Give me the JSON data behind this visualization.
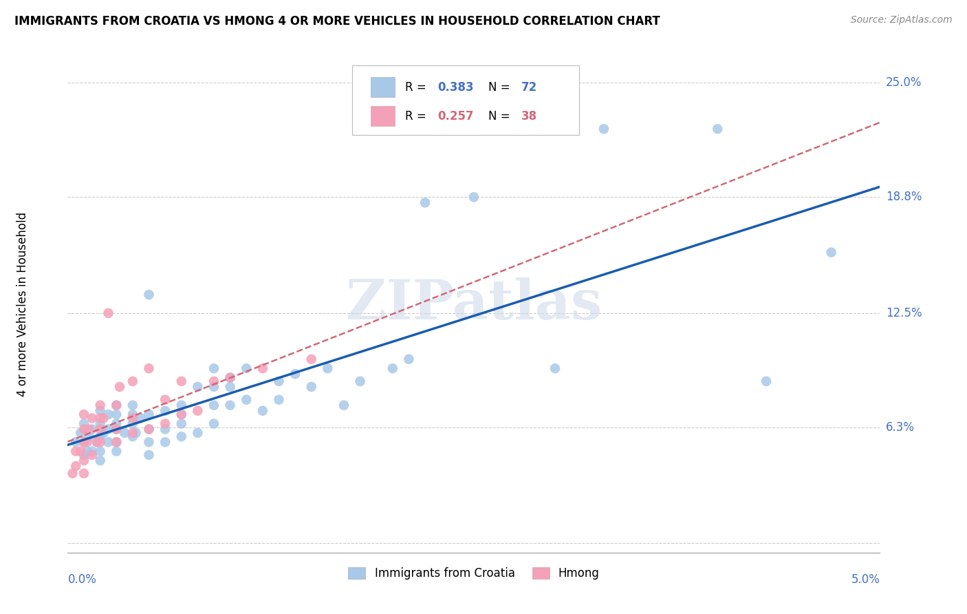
{
  "title": "IMMIGRANTS FROM CROATIA VS HMONG 4 OR MORE VEHICLES IN HOUSEHOLD CORRELATION CHART",
  "source": "Source: ZipAtlas.com",
  "ylabel": "4 or more Vehicles in Household",
  "yticks": [
    0.0,
    0.063,
    0.125,
    0.188,
    0.25
  ],
  "ytick_labels": [
    "",
    "6.3%",
    "12.5%",
    "18.8%",
    "25.0%"
  ],
  "xmin": 0.0,
  "xmax": 0.05,
  "ymin": -0.005,
  "ymax": 0.265,
  "croatia_color": "#a8c8e8",
  "hmong_color": "#f4a0b8",
  "croatia_line_color": "#1a5cb0",
  "hmong_line_color": "#d06878",
  "croatia_R": 0.383,
  "croatia_N": 72,
  "hmong_R": 0.257,
  "hmong_N": 38,
  "watermark": "ZIPatlas",
  "croatia_x": [
    0.0005,
    0.0008,
    0.001,
    0.001,
    0.001,
    0.0012,
    0.0013,
    0.0015,
    0.0015,
    0.0018,
    0.002,
    0.002,
    0.002,
    0.002,
    0.002,
    0.0022,
    0.0025,
    0.0025,
    0.0025,
    0.003,
    0.003,
    0.003,
    0.003,
    0.003,
    0.003,
    0.0035,
    0.004,
    0.004,
    0.004,
    0.004,
    0.0042,
    0.0045,
    0.005,
    0.005,
    0.005,
    0.005,
    0.005,
    0.006,
    0.006,
    0.006,
    0.007,
    0.007,
    0.007,
    0.007,
    0.008,
    0.008,
    0.009,
    0.009,
    0.009,
    0.009,
    0.01,
    0.01,
    0.01,
    0.011,
    0.011,
    0.012,
    0.013,
    0.013,
    0.014,
    0.015,
    0.016,
    0.017,
    0.018,
    0.02,
    0.021,
    0.022,
    0.025,
    0.03,
    0.033,
    0.04,
    0.043,
    0.047
  ],
  "croatia_y": [
    0.055,
    0.06,
    0.048,
    0.055,
    0.065,
    0.05,
    0.058,
    0.05,
    0.062,
    0.055,
    0.045,
    0.05,
    0.058,
    0.065,
    0.072,
    0.06,
    0.055,
    0.062,
    0.07,
    0.05,
    0.055,
    0.062,
    0.065,
    0.07,
    0.075,
    0.06,
    0.058,
    0.065,
    0.07,
    0.075,
    0.06,
    0.068,
    0.048,
    0.055,
    0.062,
    0.07,
    0.135,
    0.055,
    0.062,
    0.072,
    0.058,
    0.065,
    0.07,
    0.075,
    0.06,
    0.085,
    0.065,
    0.075,
    0.085,
    0.095,
    0.075,
    0.085,
    0.09,
    0.078,
    0.095,
    0.072,
    0.078,
    0.088,
    0.092,
    0.085,
    0.095,
    0.075,
    0.088,
    0.095,
    0.1,
    0.185,
    0.188,
    0.095,
    0.225,
    0.225,
    0.088,
    0.158
  ],
  "hmong_x": [
    0.0003,
    0.0005,
    0.0005,
    0.0008,
    0.001,
    0.001,
    0.001,
    0.001,
    0.001,
    0.0012,
    0.0013,
    0.0015,
    0.0015,
    0.0018,
    0.002,
    0.002,
    0.002,
    0.002,
    0.0022,
    0.0025,
    0.003,
    0.003,
    0.003,
    0.0032,
    0.004,
    0.004,
    0.004,
    0.005,
    0.005,
    0.006,
    0.006,
    0.007,
    0.007,
    0.008,
    0.009,
    0.01,
    0.012,
    0.015
  ],
  "hmong_y": [
    0.038,
    0.05,
    0.042,
    0.05,
    0.038,
    0.045,
    0.055,
    0.062,
    0.07,
    0.055,
    0.062,
    0.048,
    0.068,
    0.055,
    0.055,
    0.062,
    0.068,
    0.075,
    0.068,
    0.125,
    0.055,
    0.062,
    0.075,
    0.085,
    0.06,
    0.068,
    0.088,
    0.062,
    0.095,
    0.065,
    0.078,
    0.07,
    0.088,
    0.072,
    0.088,
    0.09,
    0.095,
    0.1
  ],
  "croatia_line_x": [
    0.0,
    0.05
  ],
  "croatia_line_y": [
    0.058,
    0.168
  ],
  "hmong_line_x": [
    0.0,
    0.016
  ],
  "hmong_line_y": [
    0.058,
    0.108
  ]
}
